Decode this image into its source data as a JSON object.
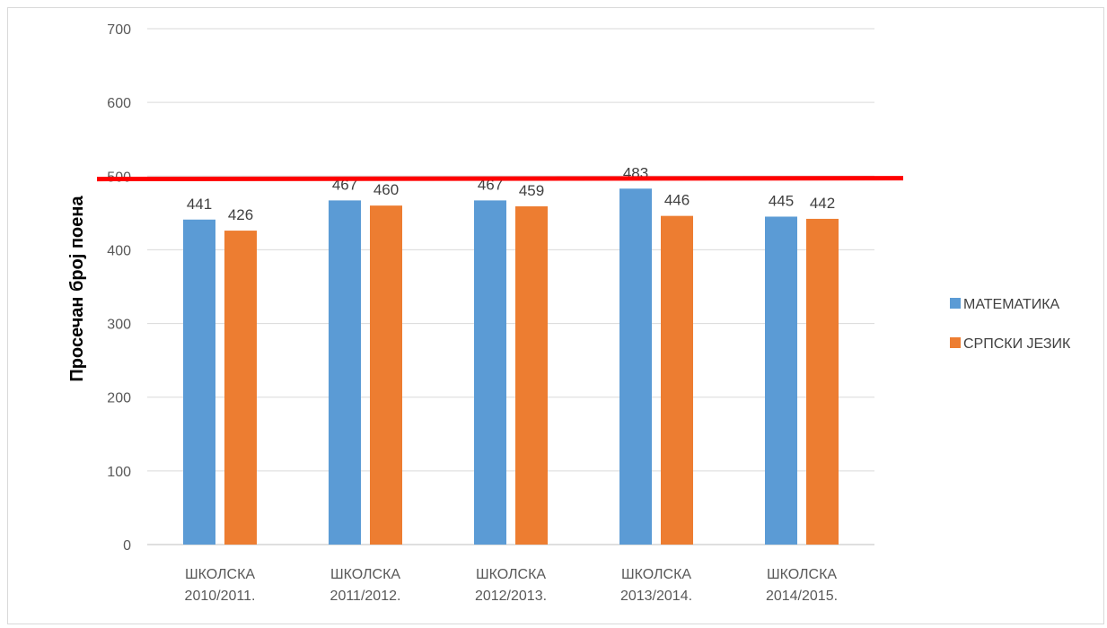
{
  "chart_data": {
    "type": "bar",
    "categories": [
      [
        "ШКОЛСКА",
        "2010/2011."
      ],
      [
        "ШКОЛСКА",
        "2011/2012."
      ],
      [
        "ШКОЛСКА",
        "2012/2013."
      ],
      [
        "ШКОЛСКА",
        "2013/2014."
      ],
      [
        "ШКОЛСКА",
        "2014/2015."
      ]
    ],
    "series": [
      {
        "name": "МАТЕМАТИКА",
        "color": "#5b9bd5",
        "values": [
          441,
          467,
          467,
          483,
          445
        ]
      },
      {
        "name": "СРПСКИ ЈЕЗИК",
        "color": "#ed7d31",
        "values": [
          426,
          460,
          459,
          446,
          442
        ]
      }
    ],
    "title": "",
    "xlabel": "",
    "ylabel": "Просечан број поена",
    "ylim": [
      0,
      700
    ],
    "yticks": [
      0,
      100,
      200,
      300,
      400,
      500,
      600,
      700
    ],
    "grid": true,
    "legend_position": "right",
    "data_labels": true,
    "reference_line": {
      "value": 496,
      "color": "#ff0000"
    }
  }
}
